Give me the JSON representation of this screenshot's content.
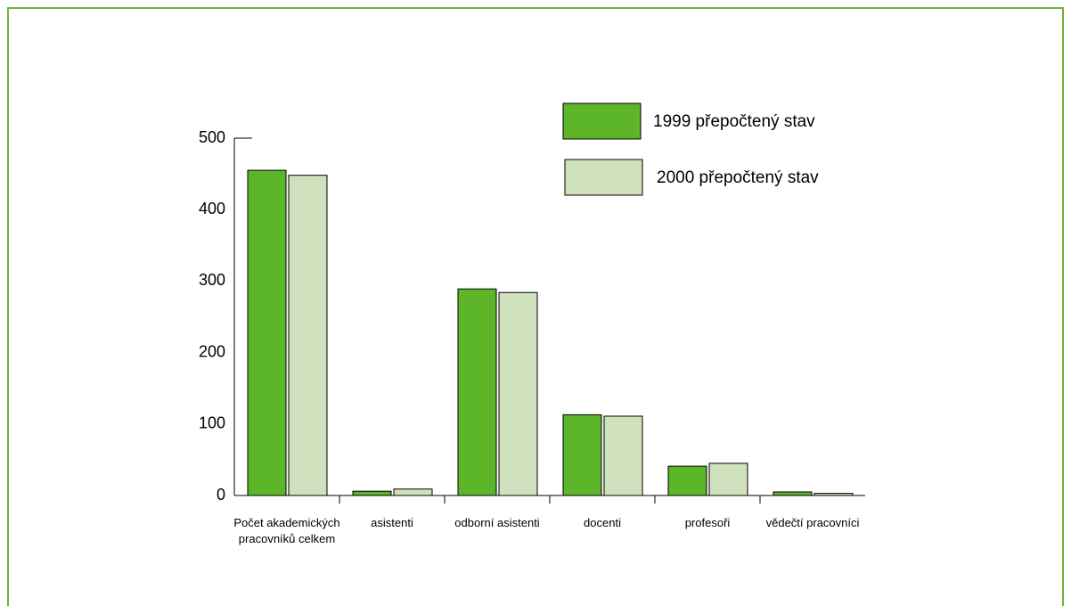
{
  "chart_data": {
    "type": "bar",
    "categories": [
      "Počet akademických pracovníků celkem",
      "asistenti",
      "odborní asistenti",
      "docenti",
      "profesoři",
      "vědečtí pracovníci"
    ],
    "series": [
      {
        "name": "1999 přepočtený stav",
        "color": "#5db52a",
        "values": [
          455,
          6,
          289,
          113,
          41,
          5
        ]
      },
      {
        "name": "2000 přepočtený stav",
        "color": "#d0e2bd",
        "values": [
          448,
          9,
          284,
          111,
          45,
          3
        ]
      }
    ],
    "ylim": [
      0,
      500
    ],
    "yticks": [
      0,
      100,
      200,
      300,
      400,
      500
    ],
    "legend": "top-right"
  }
}
